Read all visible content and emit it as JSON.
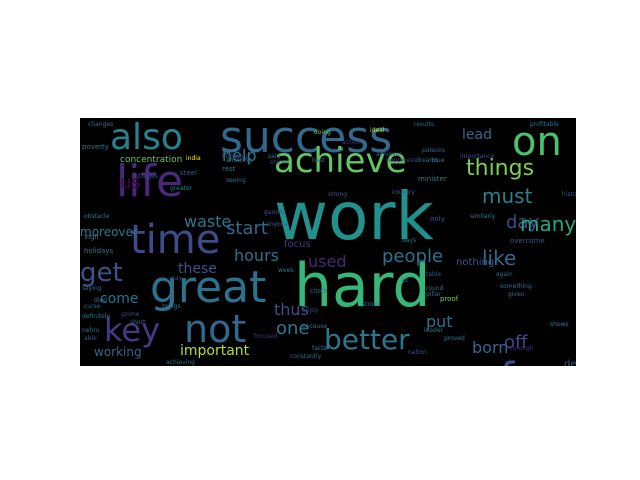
{
  "colors": {
    "canvas": "#ffffff",
    "cloud_background": "#000000",
    "palette": [
      "#440154",
      "#3b528b",
      "#21918c",
      "#5ec962",
      "#fde725"
    ]
  },
  "words": [
    {
      "text": "work",
      "color": "#21918c"
    },
    {
      "text": "hard",
      "color": "#35b779"
    },
    {
      "text": "success",
      "color": "#31688e"
    },
    {
      "text": "life",
      "color": "#482878"
    },
    {
      "text": "great",
      "color": "#2c728e"
    },
    {
      "text": "time",
      "color": "#3e4a89"
    },
    {
      "text": "also",
      "color": "#26828e"
    },
    {
      "text": "achieve",
      "color": "#5ec962"
    },
    {
      "text": "not",
      "color": "#31688e"
    },
    {
      "text": "on",
      "color": "#4ac16d"
    },
    {
      "text": "for",
      "color": "#3b528b"
    },
    {
      "text": "key",
      "color": "#443983"
    },
    {
      "text": "better",
      "color": "#2a788e"
    },
    {
      "text": "get",
      "color": "#3b528b"
    },
    {
      "text": "things",
      "color": "#7ad151"
    },
    {
      "text": "people",
      "color": "#2c728e"
    },
    {
      "text": "like",
      "color": "#31688e"
    },
    {
      "text": "must",
      "color": "#26828e"
    },
    {
      "text": "day",
      "color": "#3e4a89"
    },
    {
      "text": "many",
      "color": "#22a884"
    },
    {
      "text": "help",
      "color": "#2a788e"
    },
    {
      "text": "start",
      "color": "#31688e"
    },
    {
      "text": "hours",
      "color": "#2c728e"
    },
    {
      "text": "used",
      "color": "#482878"
    },
    {
      "text": "thus",
      "color": "#3b528b"
    },
    {
      "text": "one",
      "color": "#2a788e"
    },
    {
      "text": "important",
      "color": "#b5de2b"
    },
    {
      "text": "waste",
      "color": "#2a788e"
    },
    {
      "text": "these",
      "color": "#3b528b"
    },
    {
      "text": "come",
      "color": "#2c728e"
    },
    {
      "text": "working",
      "color": "#31688e"
    },
    {
      "text": "put",
      "color": "#2c728e"
    },
    {
      "text": "born",
      "color": "#31688e"
    },
    {
      "text": "off",
      "color": "#3e4a89"
    },
    {
      "text": "lead",
      "color": "#31688e"
    },
    {
      "text": "us",
      "color": "#440154"
    },
    {
      "text": "moreover",
      "color": "#2a788e"
    },
    {
      "text": "concentration",
      "color": "#5ec962"
    },
    {
      "text": "determination",
      "color": "#3b528b"
    },
    {
      "text": "nothing",
      "color": "#3b528b"
    },
    {
      "text": "focus",
      "color": "#443983"
    },
    {
      "text": "poverty",
      "color": "#2a788e"
    },
    {
      "text": "changes",
      "color": "#2c728e"
    },
    {
      "text": "results",
      "color": "#31688e"
    },
    {
      "text": "holidays",
      "color": "#2a788e"
    },
    {
      "text": "minister",
      "color": "#26828e"
    },
    {
      "text": "india",
      "color": "#fde725"
    },
    {
      "text": "knowing",
      "color": "#3b528b"
    },
    {
      "text": "doing",
      "color": "#5ec962"
    },
    {
      "text": "ideal",
      "color": "#b5de2b"
    },
    {
      "text": "rest",
      "color": "#2c728e"
    },
    {
      "text": "gandhi",
      "color": "#3b528b"
    },
    {
      "text": "enjoy",
      "color": "#3e4a89"
    },
    {
      "text": "proof",
      "color": "#7ad151"
    },
    {
      "text": "definitely",
      "color": "#2c728e"
    },
    {
      "text": "nehru",
      "color": "#2a788e"
    },
    {
      "text": "able",
      "color": "#3b528b"
    },
    {
      "text": "constantly",
      "color": "#31688e"
    },
    {
      "text": "focused",
      "color": "#443983"
    },
    {
      "text": "leader",
      "color": "#2c728e"
    },
    {
      "text": "proved",
      "color": "#2a788e"
    },
    {
      "text": "overcome",
      "color": "#3b528b"
    },
    {
      "text": "given",
      "color": "#2c728e"
    },
    {
      "text": "through",
      "color": "#482878"
    },
    {
      "text": "curse",
      "color": "#31688e"
    },
    {
      "text": "obstacle",
      "color": "#2c728e"
    },
    {
      "text": "vigil",
      "color": "#2a788e"
    },
    {
      "text": "prime",
      "color": "#3b528b"
    },
    {
      "text": "short",
      "color": "#31688e"
    },
    {
      "text": "died",
      "color": "#2c728e"
    },
    {
      "text": "greater",
      "color": "#2a788e"
    },
    {
      "text": "something",
      "color": "#2c728e"
    },
    {
      "text": "again",
      "color": "#31688e"
    },
    {
      "text": "time",
      "color": "#3e4a89"
    },
    {
      "text": "table",
      "color": "#3b528b"
    },
    {
      "text": "cottages",
      "color": "#3b528b"
    },
    {
      "text": "palaces",
      "color": "#31688e"
    },
    {
      "text": "seeing",
      "color": "#2c728e"
    },
    {
      "text": "amazing",
      "color": "#2a788e"
    },
    {
      "text": "importance",
      "color": "#3b528b"
    },
    {
      "text": "achiever",
      "color": "#31688e"
    },
    {
      "text": "dreams",
      "color": "#2c728e"
    },
    {
      "text": "steel",
      "color": "#3b528b"
    },
    {
      "text": "similarly",
      "color": "#2a788e"
    },
    {
      "text": "country",
      "color": "#31688e"
    },
    {
      "text": "happiness",
      "color": "#443983"
    },
    {
      "text": "true",
      "color": "#2c728e"
    },
    {
      "text": "only",
      "color": "#3b528b"
    },
    {
      "text": "days",
      "color": "#2c728e"
    },
    {
      "text": "anyone",
      "color": "#31688e"
    },
    {
      "text": "shines",
      "color": "#3e4a89"
    },
    {
      "text": "stroke",
      "color": "#2c728e"
    },
    {
      "text": "clock",
      "color": "#31688e"
    },
    {
      "text": "week",
      "color": "#2a788e"
    },
    {
      "text": "achieving",
      "color": "#2c728e"
    },
    {
      "text": "facts",
      "color": "#2a788e"
    },
    {
      "text": "strong",
      "color": "#3b528b"
    },
    {
      "text": "said",
      "color": "#2c728e"
    },
    {
      "text": "best",
      "color": "#31688e"
    },
    {
      "text": "history",
      "color": "#3b528b"
    },
    {
      "text": "because",
      "color": "#2c728e"
    },
    {
      "text": "brings",
      "color": "#2a788e"
    },
    {
      "text": "saying",
      "color": "#31688e"
    },
    {
      "text": "way",
      "color": "#3b528b"
    },
    {
      "text": "round",
      "color": "#2c728e"
    },
    {
      "text": "pillar",
      "color": "#31688e"
    },
    {
      "text": "shows",
      "color": "#2a788e"
    },
    {
      "text": "nation",
      "color": "#3b528b"
    },
    {
      "text": "pt",
      "color": "#2c728e"
    },
    {
      "text": "ill",
      "color": "#31688e"
    },
    {
      "text": "action",
      "color": "#443983"
    },
    {
      "text": "profitable",
      "color": "#2c728e"
    }
  ]
}
